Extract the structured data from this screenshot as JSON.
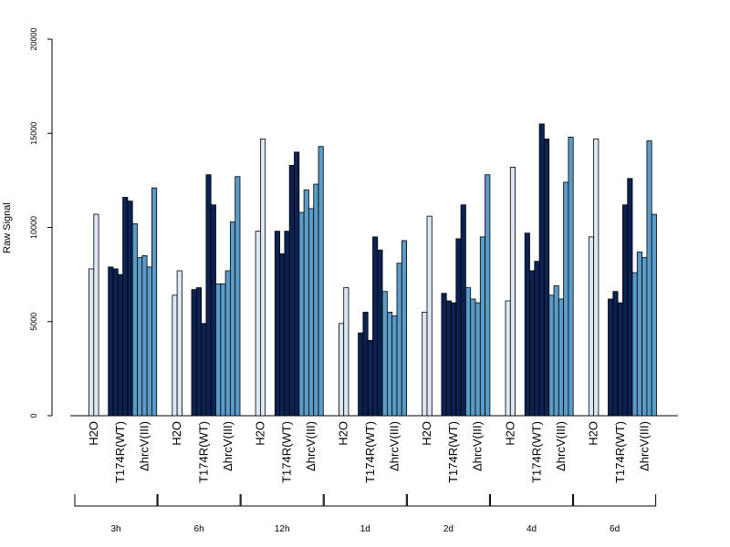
{
  "chart_data": {
    "type": "bar",
    "ylabel": "Raw Signal",
    "ylim": [
      0,
      20000
    ],
    "yticks": [
      0,
      5000,
      10000,
      15000,
      20000
    ],
    "grid": false,
    "colors": {
      "H2O": "#dde7f3",
      "T174R(WT)": "#0b2252",
      "ΔhrcV(III)": "#5b9bc8"
    },
    "timepoints": [
      {
        "label": "3h",
        "groups": [
          {
            "name": "H2O",
            "values": [
              7800,
              10700
            ]
          },
          {
            "name": "T174R(WT)",
            "values": [
              7900,
              7800,
              7500,
              11600,
              11400
            ]
          },
          {
            "name": "ΔhrcV(III)",
            "values": [
              10200,
              8400,
              8500,
              7900,
              12100
            ]
          }
        ]
      },
      {
        "label": "6h",
        "groups": [
          {
            "name": "H2O",
            "values": [
              6400,
              7700
            ]
          },
          {
            "name": "T174R(WT)",
            "values": [
              6700,
              6800,
              4900,
              12800,
              11200
            ]
          },
          {
            "name": "ΔhrcV(III)",
            "values": [
              7000,
              7000,
              7700,
              10300,
              12700
            ]
          }
        ]
      },
      {
        "label": "12h",
        "groups": [
          {
            "name": "H2O",
            "values": [
              9800,
              14700
            ]
          },
          {
            "name": "T174R(WT)",
            "values": [
              9800,
              8600,
              9800,
              13300,
              14000
            ]
          },
          {
            "name": "ΔhrcV(III)",
            "values": [
              10800,
              12000,
              11000,
              12300,
              14300
            ]
          }
        ]
      },
      {
        "label": "1d",
        "groups": [
          {
            "name": "H2O",
            "values": [
              4900,
              6800
            ]
          },
          {
            "name": "T174R(WT)",
            "values": [
              4400,
              5500,
              4000,
              9500,
              8800
            ]
          },
          {
            "name": "ΔhrcV(III)",
            "values": [
              6600,
              5500,
              5300,
              8100,
              9300
            ]
          }
        ]
      },
      {
        "label": "2d",
        "groups": [
          {
            "name": "H2O",
            "values": [
              5500,
              10600
            ]
          },
          {
            "name": "T174R(WT)",
            "values": [
              6500,
              6100,
              6000,
              9400,
              11200
            ]
          },
          {
            "name": "ΔhrcV(III)",
            "values": [
              6800,
              6200,
              6000,
              9500,
              12800
            ]
          }
        ]
      },
      {
        "label": "4d",
        "groups": [
          {
            "name": "H2O",
            "values": [
              6100,
              13200
            ]
          },
          {
            "name": "T174R(WT)",
            "values": [
              9700,
              7700,
              8200,
              15500,
              14700
            ]
          },
          {
            "name": "ΔhrcV(III)",
            "values": [
              6400,
              6900,
              6200,
              12400,
              14800
            ]
          }
        ]
      },
      {
        "label": "6d",
        "groups": [
          {
            "name": "H2O",
            "values": [
              9500,
              14700
            ]
          },
          {
            "name": "T174R(WT)",
            "values": [
              6200,
              6600,
              6000,
              11200,
              12600
            ]
          },
          {
            "name": "ΔhrcV(III)",
            "values": [
              7600,
              8700,
              8400,
              14600,
              10700
            ]
          }
        ]
      }
    ]
  }
}
